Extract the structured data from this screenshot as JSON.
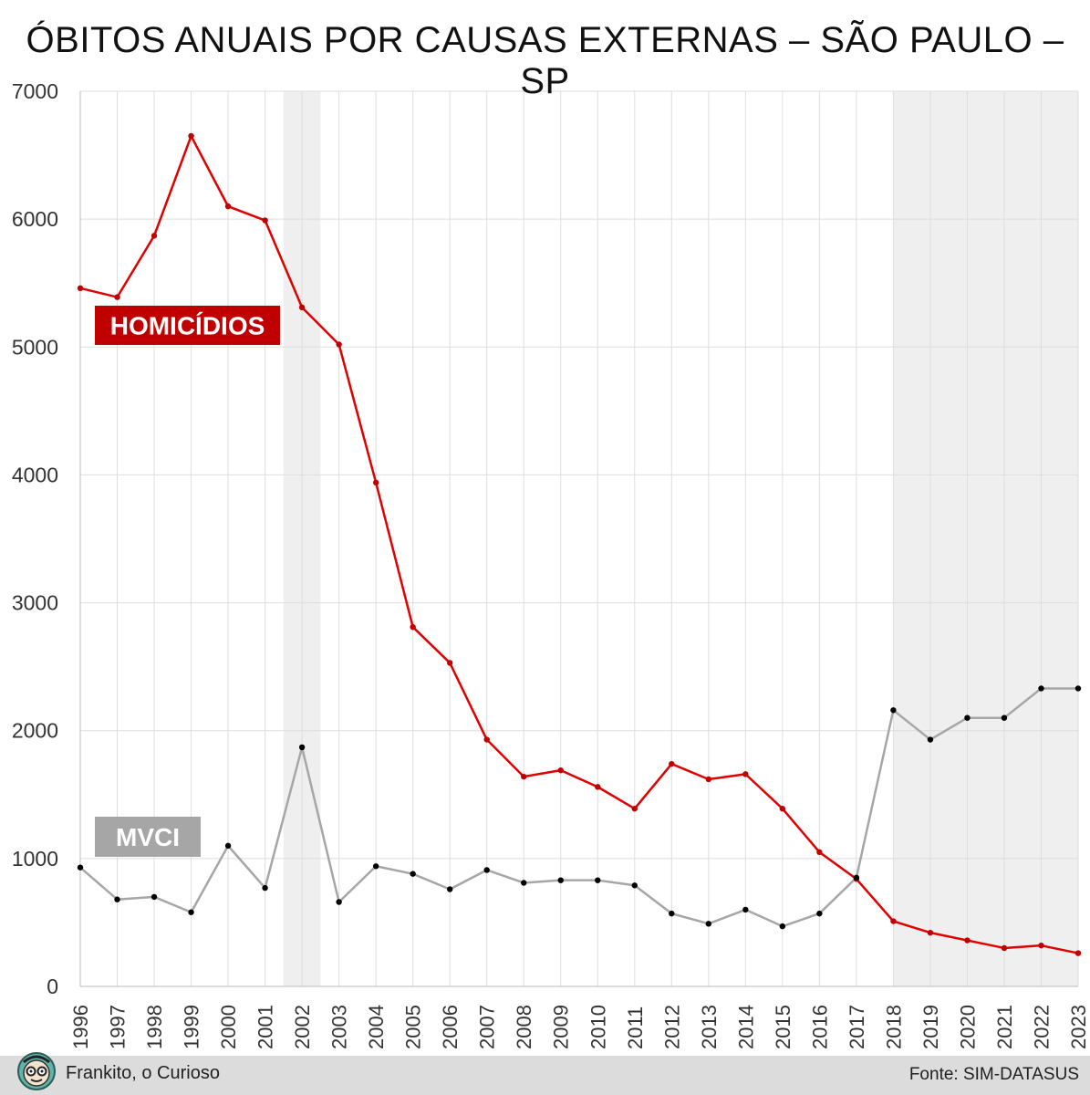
{
  "chart_data": {
    "type": "line",
    "title": "ÓBITOS ANUAIS POR CAUSAS EXTERNAS – SÃO PAULO – SP",
    "xlabel": "",
    "ylabel": "",
    "ylim": [
      0,
      7000
    ],
    "yticks": [
      "0",
      "1000",
      "2000",
      "3000",
      "4000",
      "5000",
      "6000",
      "7000"
    ],
    "categories": [
      "1996",
      "1997",
      "1998",
      "1999",
      "2000",
      "2001",
      "2002",
      "2003",
      "2004",
      "2005",
      "2006",
      "2007",
      "2008",
      "2009",
      "2010",
      "2011",
      "2012",
      "2013",
      "2014",
      "2015",
      "2016",
      "2017",
      "2018",
      "2019",
      "2020",
      "2021",
      "2022",
      "2023"
    ],
    "grid": true,
    "shaded_years": [
      [
        "2002",
        "2002"
      ],
      [
        "2018",
        "2023"
      ]
    ],
    "series": [
      {
        "name": "HOMICÍDIOS",
        "color": "#e00000",
        "label_bg": "#c00000",
        "values": [
          5460,
          5390,
          5870,
          6650,
          6100,
          5990,
          5310,
          5020,
          3940,
          2810,
          2530,
          1930,
          1640,
          1690,
          1560,
          1390,
          1740,
          1620,
          1660,
          1390,
          1050,
          840,
          510,
          420,
          360,
          300,
          320,
          260
        ]
      },
      {
        "name": "MVCI",
        "color": "#a6a6a6",
        "label_bg": "#a6a6a6",
        "values": [
          930,
          680,
          700,
          580,
          1100,
          770,
          1870,
          660,
          940,
          880,
          760,
          910,
          810,
          830,
          830,
          790,
          570,
          490,
          600,
          470,
          570,
          850,
          2160,
          1930,
          2100,
          2100,
          2330,
          2330
        ]
      }
    ]
  },
  "footer": {
    "author": "Frankito, o Curioso",
    "source": "Fonte: SIM-DATASUS"
  }
}
